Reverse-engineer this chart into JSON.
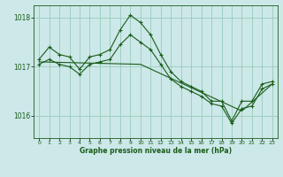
{
  "title": "Graphe pression niveau de la mer (hPa)",
  "bg_color": "#cce8e8",
  "grid_color": "#99ccbb",
  "line_color": "#1a5c1a",
  "xlim": [
    -0.5,
    23.5
  ],
  "ylim": [
    1015.55,
    1018.25
  ],
  "yticks": [
    1016,
    1017,
    1018
  ],
  "xticks": [
    0,
    1,
    2,
    3,
    4,
    5,
    6,
    7,
    8,
    9,
    10,
    11,
    12,
    13,
    14,
    15,
    16,
    17,
    18,
    19,
    20,
    21,
    22,
    23
  ],
  "series1_x": [
    0,
    1,
    2,
    3,
    4,
    5,
    6,
    7,
    8,
    9,
    10,
    11,
    12,
    13,
    14,
    15,
    16,
    17,
    18,
    19,
    20,
    21,
    22,
    23
  ],
  "series1_y": [
    1017.15,
    1017.4,
    1017.25,
    1017.2,
    1016.95,
    1017.2,
    1017.25,
    1017.35,
    1017.75,
    1018.05,
    1017.9,
    1017.65,
    1017.25,
    1016.9,
    1016.7,
    1016.6,
    1016.5,
    1016.3,
    1016.3,
    1015.9,
    1016.3,
    1016.3,
    1016.65,
    1016.7
  ],
  "series2_x": [
    0,
    1,
    2,
    3,
    4,
    5,
    6,
    7,
    8,
    9,
    10,
    11,
    12,
    13,
    14,
    15,
    16,
    17,
    18,
    19,
    20,
    21,
    22,
    23
  ],
  "series2_y": [
    1017.05,
    1017.15,
    1017.05,
    1017.0,
    1016.85,
    1017.05,
    1017.1,
    1017.15,
    1017.45,
    1017.65,
    1017.5,
    1017.35,
    1017.05,
    1016.75,
    1016.6,
    1016.5,
    1016.4,
    1016.25,
    1016.2,
    1015.85,
    1016.15,
    1016.2,
    1016.55,
    1016.65
  ],
  "series3_x": [
    0,
    10,
    20,
    23
  ],
  "series3_y": [
    1017.1,
    1017.05,
    1016.1,
    1016.65
  ]
}
